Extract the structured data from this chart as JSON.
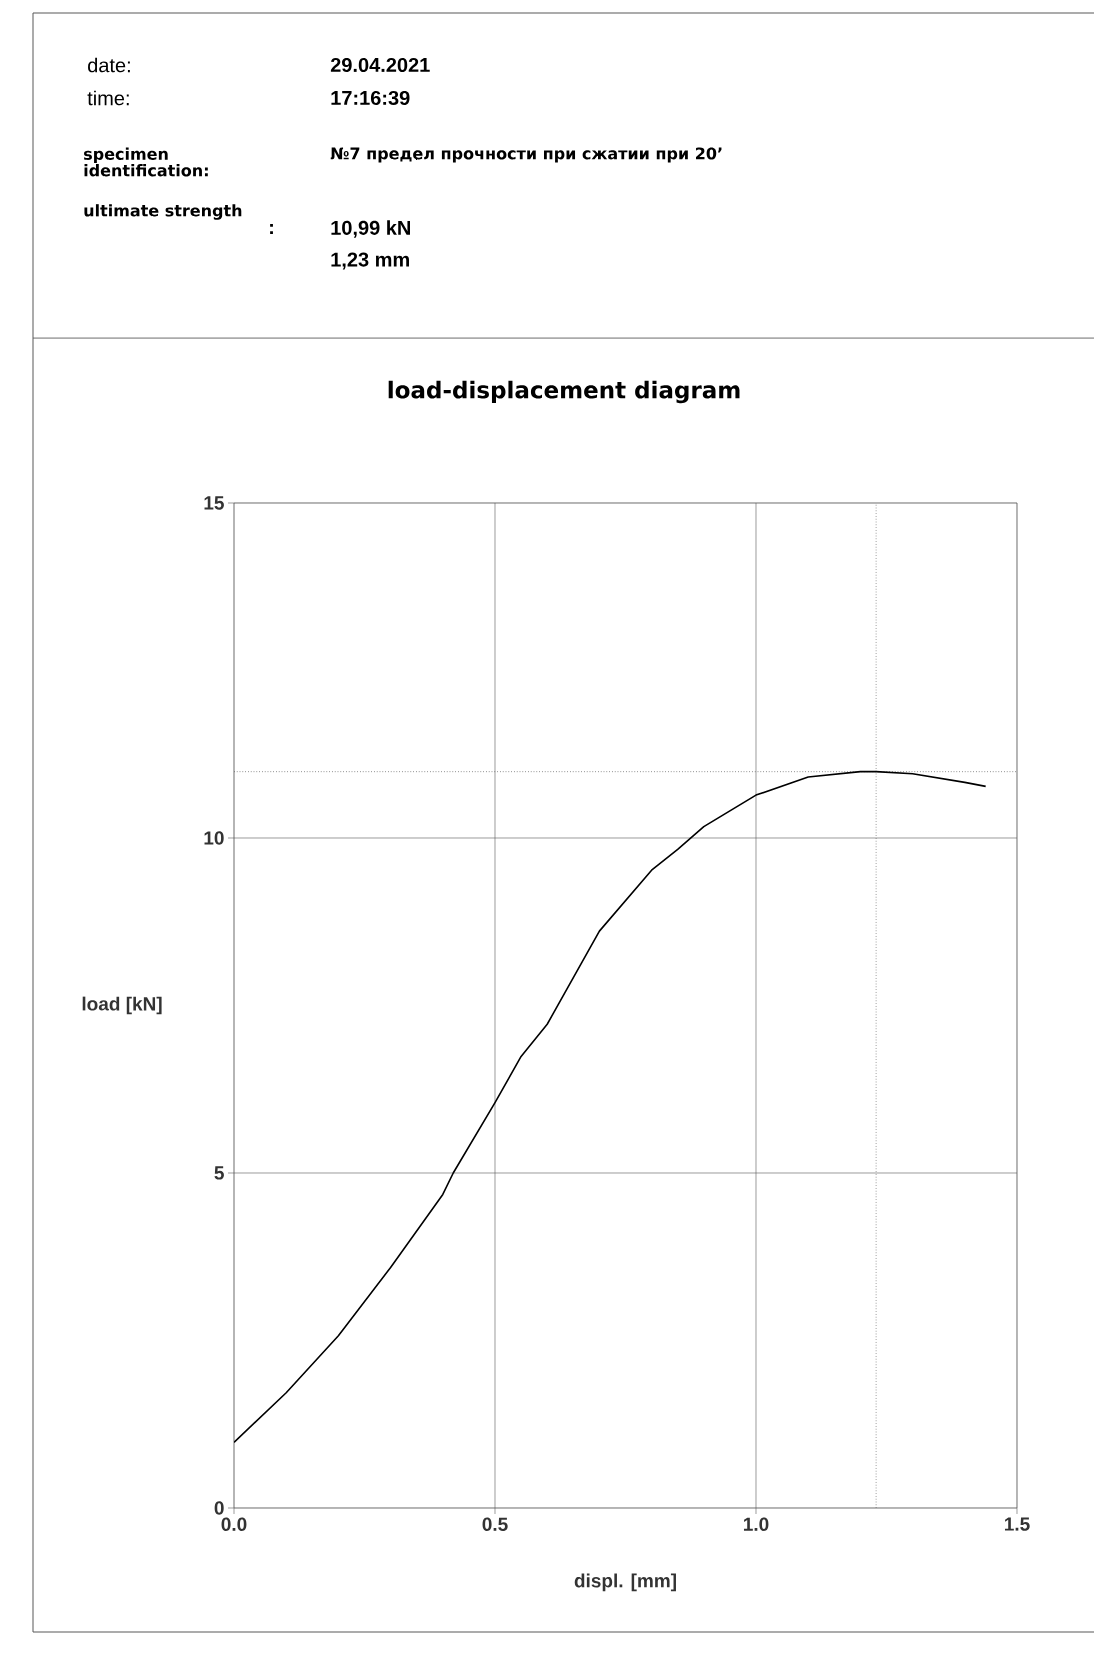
{
  "chart_data": {
    "type": "line",
    "title": "load-displacement diagram",
    "xlabel": "displ. [mm]",
    "ylabel": "load [kN]",
    "annotations": [
      "date:",
      "29.04.2021",
      "time:",
      "17:16:39",
      "specimen identification:",
      "№7 предел прочности при сжатии при 20’",
      "ultimate strength",
      ":",
      "10,99 kN",
      "1,23 mm"
    ],
    "x": [
      0.0,
      0.1,
      0.2,
      0.3,
      0.4,
      0.42,
      0.5,
      0.55,
      0.6,
      0.7,
      0.8,
      0.85,
      0.9,
      1.0,
      1.1,
      1.2,
      1.23,
      1.3,
      1.4,
      1.44
    ],
    "series": [
      {
        "color": "#000000",
        "values": [
          0.98,
          1.72,
          2.57,
          3.59,
          4.68,
          5.0,
          6.05,
          6.74,
          7.22,
          8.61,
          9.52,
          9.83,
          10.17,
          10.64,
          10.91,
          10.99,
          10.99,
          10.96,
          10.83,
          10.77
        ]
      }
    ],
    "xlim": [
      0,
      1.5
    ],
    "ylim": [
      0,
      15
    ],
    "xticks": [
      {
        "value": 0,
        "label": "0.0"
      },
      0.5,
      {
        "value": 1,
        "label": "1.0"
      },
      1.5
    ],
    "yticks": [
      0,
      5,
      10,
      15
    ],
    "ref_lines": [
      {
        "axis": "y",
        "value": 10.99,
        "line_style": "dotted"
      },
      {
        "axis": "x",
        "value": 1.23,
        "line_style": "dotted"
      }
    ],
    "grid": true
  }
}
